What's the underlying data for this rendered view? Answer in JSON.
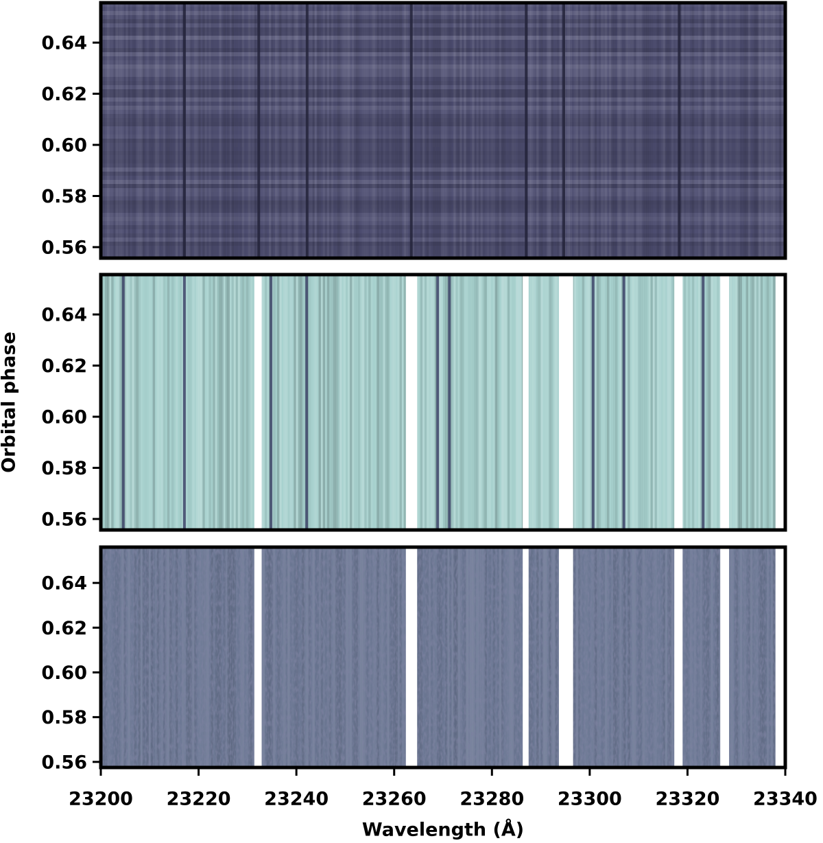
{
  "chart_data": [
    {
      "type": "heatmap",
      "color": "#4f4f72",
      "line_color": "#23233a",
      "xlim": [
        23200,
        23340
      ],
      "ylim": [
        0.5557,
        0.6556
      ],
      "yticks": [
        0.56,
        0.58,
        {
          "value": 0.6,
          "label": "0.60"
        },
        0.62,
        0.64
      ],
      "lines": [
        23217.1,
        23232.3,
        23242.2,
        23263.5,
        23287.0,
        23294.7,
        23318.3
      ],
      "masked": []
    },
    {
      "type": "heatmap",
      "color": "#a8d2cf",
      "line_color": "#3e4468",
      "xlim": [
        23200,
        23340
      ],
      "ylim": [
        0.5557,
        0.6556
      ],
      "ylabel": "Orbital phase",
      "yticks": [
        0.56,
        0.58,
        {
          "value": 0.6,
          "label": "0.60"
        },
        0.62,
        0.64
      ],
      "lines": [
        23204.6,
        23217.1,
        23234.8,
        23242.1,
        23268.9,
        23271.3,
        23300.7,
        23307.0,
        23323.2
      ],
      "masked": [
        [
          23231.4,
          23232.9
        ],
        [
          23262.4,
          23264.7
        ],
        [
          23286.3,
          23287.5
        ],
        [
          23293.7,
          23296.6
        ],
        [
          23317.3,
          23319.0
        ],
        [
          23326.7,
          23328.5
        ],
        [
          23338.0,
          23340
        ]
      ]
    },
    {
      "type": "heatmap",
      "color": "#6c7894",
      "line_color": "#3e4468",
      "xlim": [
        23200,
        23340
      ],
      "ylim": [
        0.5575,
        0.656
      ],
      "xlabel": "Wavelength (Å)",
      "xticks": [
        23200,
        23220,
        23240,
        23260,
        23280,
        23300,
        23320,
        23340
      ],
      "yticks": [
        0.56,
        0.58,
        {
          "value": 0.6,
          "label": "0.60"
        },
        0.62,
        0.64
      ],
      "lines": [],
      "masked": [
        [
          23231.4,
          23232.9
        ],
        [
          23262.4,
          23264.7
        ],
        [
          23286.3,
          23287.5
        ],
        [
          23293.7,
          23296.6
        ],
        [
          23317.3,
          23319.0
        ],
        [
          23326.7,
          23328.5
        ],
        [
          23338.0,
          23340
        ]
      ]
    }
  ]
}
